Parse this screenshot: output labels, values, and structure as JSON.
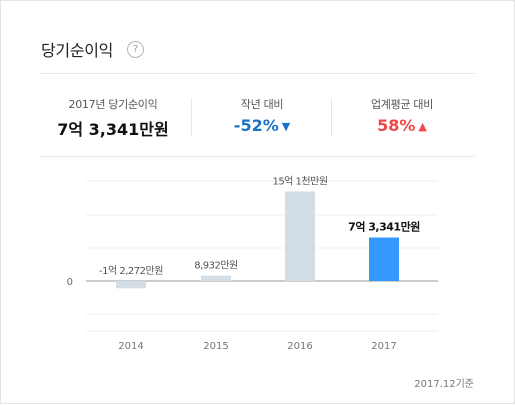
{
  "header": {
    "title": "당기순이익",
    "help_icon": "question-circle-icon",
    "help_glyph": "?"
  },
  "stats": [
    {
      "label": "2017년 당기순이익",
      "value": "7억 3,341만원",
      "color": "#111111"
    },
    {
      "label": "작년 대비",
      "value": "-52%",
      "trend": "down",
      "trend_glyph": "▼",
      "color": "#1a73c8"
    },
    {
      "label": "업계평균 대비",
      "value": "58%",
      "trend": "up",
      "trend_glyph": "▲",
      "color": "#f04848"
    }
  ],
  "chart_data": {
    "type": "bar",
    "categories": [
      "2014",
      "2015",
      "2016",
      "2017"
    ],
    "values": [
      -1.2272,
      0.8932,
      15.1,
      7.3341
    ],
    "value_unit": "억원",
    "data_labels": [
      "-1억 2,272만원",
      "8,932만원",
      "15억 1천만원",
      "7억 3,341만원"
    ],
    "y_tick_labels": [
      "0"
    ],
    "ylim": [
      -4,
      20
    ],
    "highlight_index": 3,
    "colors": {
      "bar": "#d2dde5",
      "highlight": "#3399ff",
      "zero_line": "#999999",
      "grid": "#eeeeee"
    }
  },
  "footer": {
    "basis_date": "2017.12기준"
  }
}
